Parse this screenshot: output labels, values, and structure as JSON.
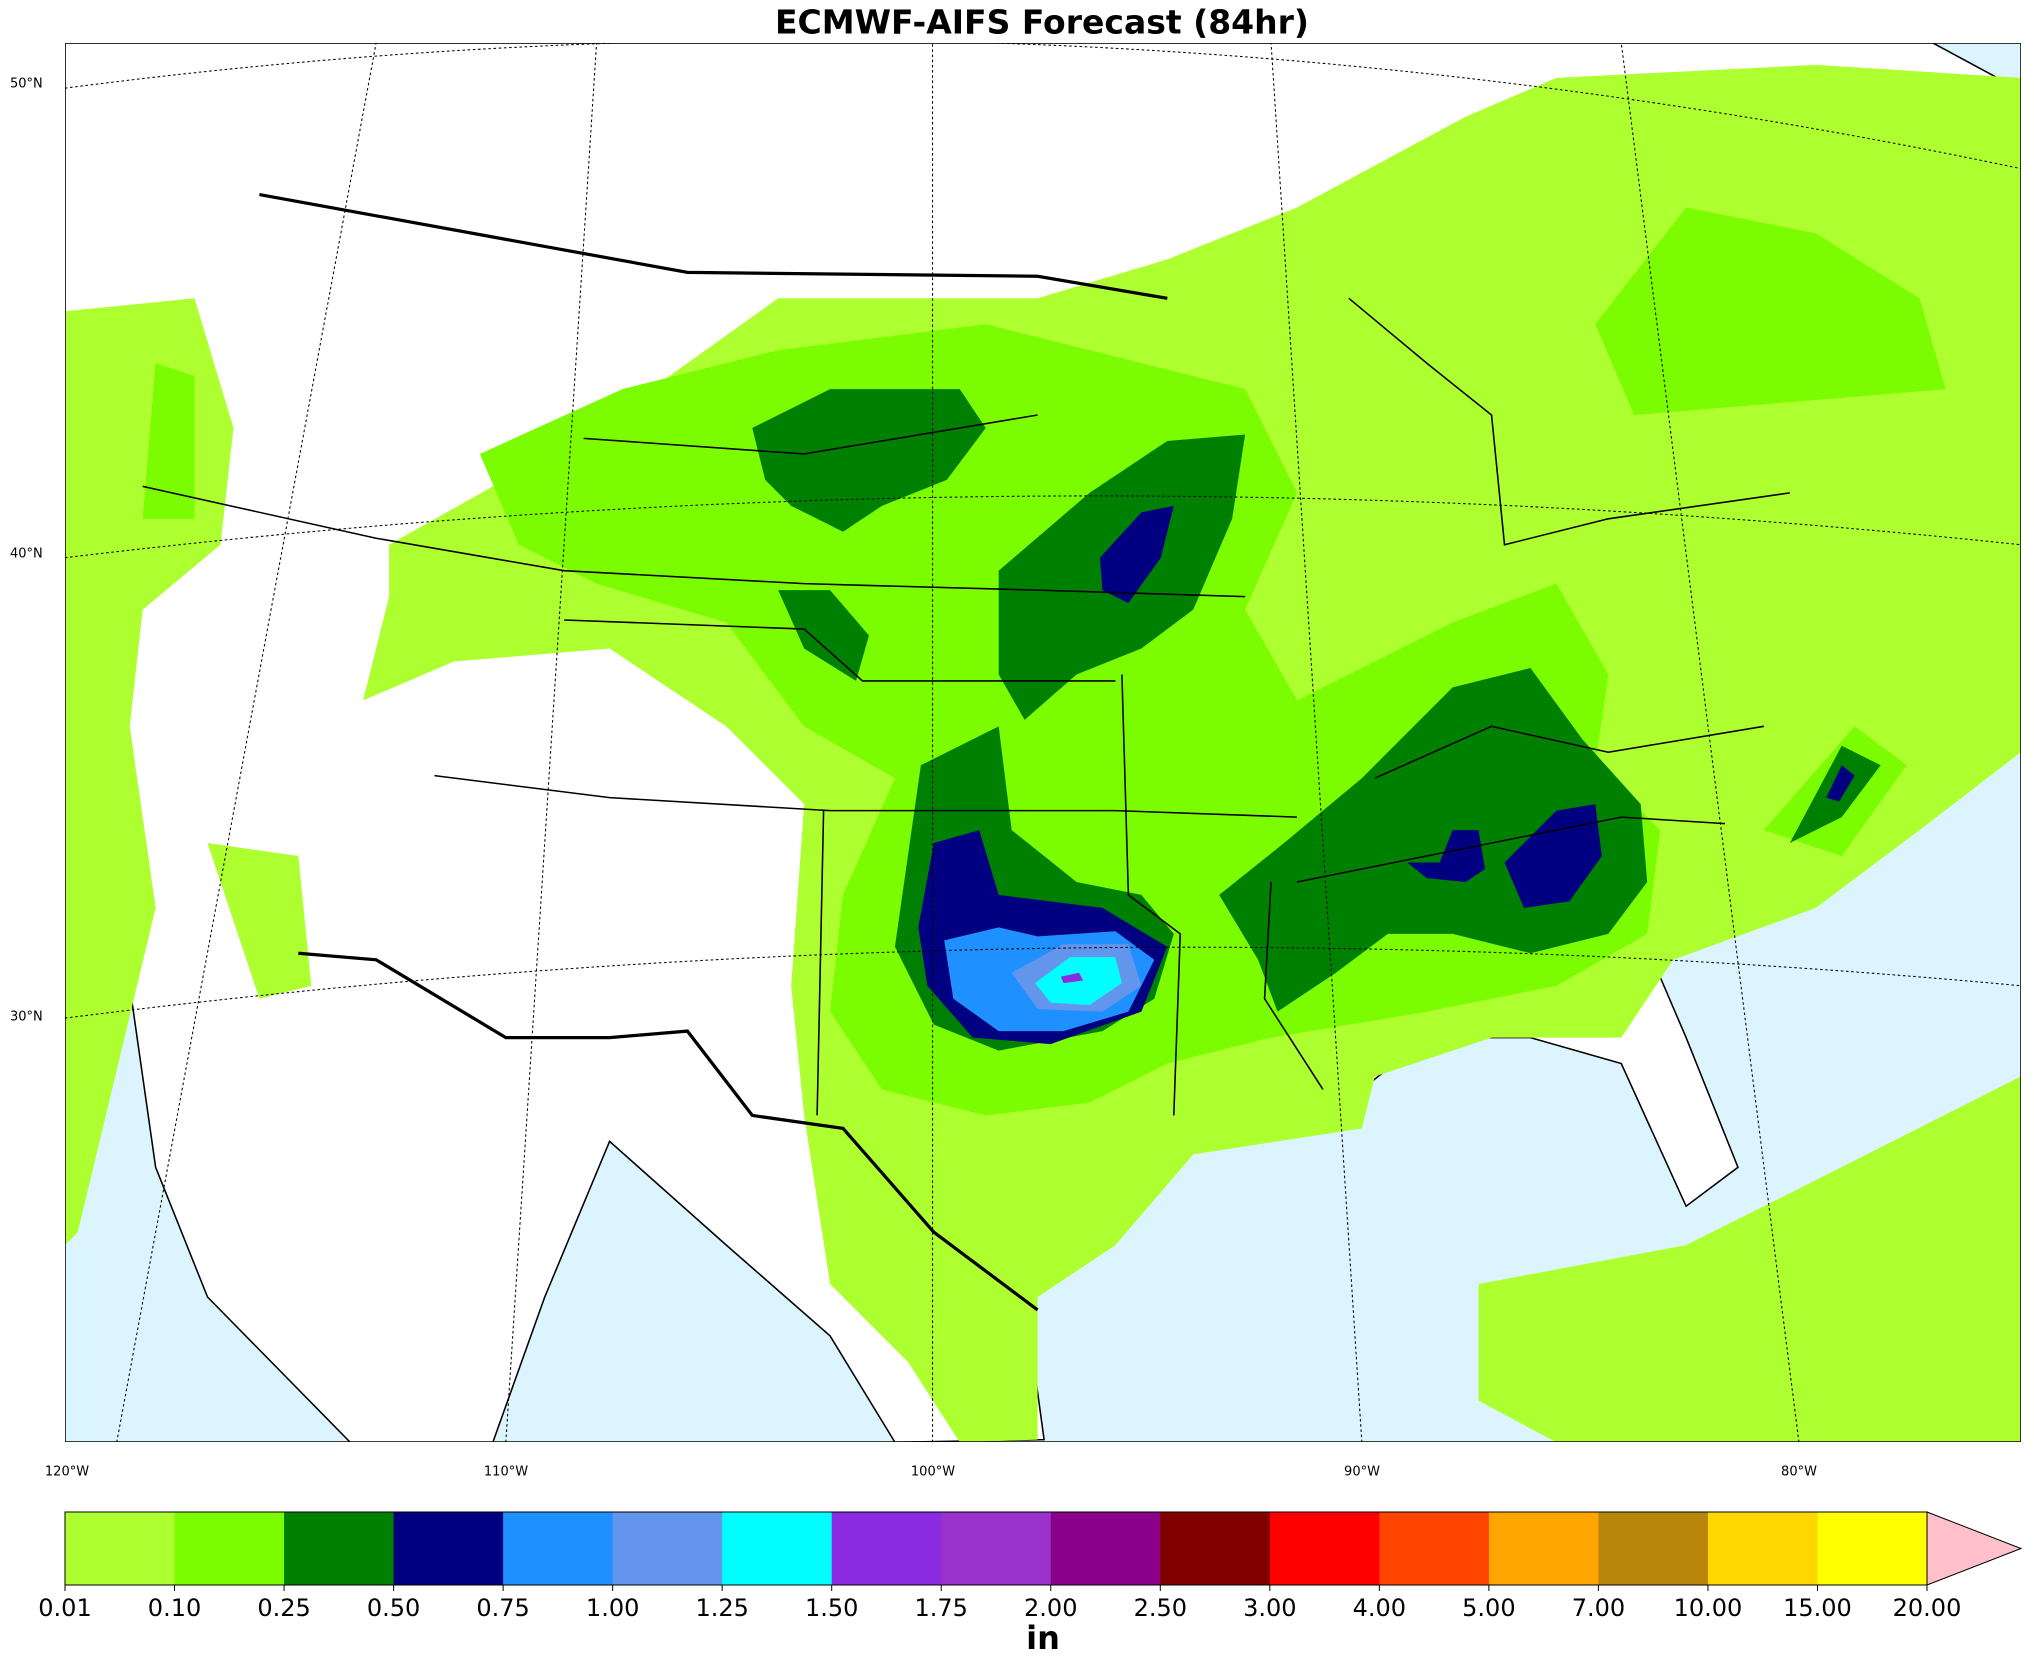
{
  "title": "ECMWF-AIFS Forecast (84hr)",
  "map": {
    "lat_labels": [
      "50°N",
      "40°N",
      "30°N"
    ],
    "lon_labels": [
      "120°W",
      "110°W",
      "100°W",
      "90°W",
      "80°W"
    ]
  },
  "colorbar": {
    "ticks": [
      0.01,
      {
        "value": 0.1,
        "label": "0.10"
      },
      0.25,
      {
        "value": 0.5,
        "label": "0.50"
      },
      0.75,
      {
        "value": 1,
        "label": "1.00"
      },
      1.25,
      {
        "value": 1.5,
        "label": "1.50"
      },
      1.75,
      {
        "value": 2,
        "label": "2.00"
      },
      {
        "value": 2.5,
        "label": "2.50"
      },
      {
        "value": 3,
        "label": "3.00"
      },
      {
        "value": 4,
        "label": "4.00"
      },
      {
        "value": 5,
        "label": "5.00"
      },
      {
        "value": 7,
        "label": "7.00"
      },
      {
        "value": 10,
        "label": "10.00"
      },
      {
        "value": 15,
        "label": "15.00"
      },
      {
        "value": 20,
        "label": "20.00"
      }
    ],
    "colors": [
      "#adff2f",
      "#7cfc00",
      "#008000",
      "#000080",
      "#1e90ff",
      "#6495ed",
      "#00ffff",
      "#8a2be2",
      "#9932cc",
      "#8b008b",
      "#800000",
      "#ff0000",
      "#ff4500",
      "#ffa500",
      "#b8860b",
      "#ffd700",
      "#ffff00"
    ],
    "extend_color": "#ffc0cb",
    "label": "in"
  }
}
